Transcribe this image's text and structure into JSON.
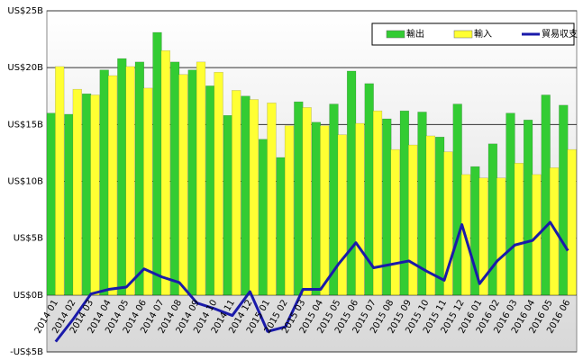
{
  "chart_data": {
    "type": "bar",
    "categories": [
      "2014 01",
      "2014 02",
      "2014 03",
      "2014 04",
      "2014 05",
      "2014 06",
      "2014 07",
      "2014 08",
      "2014 09",
      "2014 10",
      "2014 11",
      "2014 12",
      "2015 01",
      "2015 02",
      "2015 03",
      "2015 04",
      "2015 05",
      "2015 06",
      "2015 07",
      "2015 08",
      "2015 09",
      "2015 10",
      "2015 11",
      "2015 12",
      "2016 01",
      "2016 02",
      "2016 03",
      "2016 04",
      "2016 05",
      "2016 06"
    ],
    "series": [
      {
        "name": "輸出",
        "type": "bar",
        "color": "#33cc33",
        "values": [
          16.0,
          15.9,
          17.7,
          19.8,
          20.8,
          20.5,
          23.1,
          20.5,
          19.8,
          18.4,
          15.8,
          17.5,
          13.7,
          12.1,
          17.0,
          15.2,
          16.8,
          19.7,
          18.6,
          15.5,
          16.2,
          16.1,
          13.9,
          16.8,
          11.3,
          13.3,
          16.0,
          15.4,
          17.6,
          16.7
        ]
      },
      {
        "name": "輸入",
        "type": "bar",
        "color": "#ffff33",
        "values": [
          20.1,
          18.1,
          17.6,
          19.3,
          20.1,
          18.2,
          21.5,
          19.4,
          20.5,
          19.6,
          18.0,
          17.2,
          16.9,
          14.9,
          16.5,
          14.9,
          14.1,
          15.1,
          16.2,
          12.8,
          13.2,
          14.0,
          12.6,
          10.6,
          10.3,
          10.3,
          11.6,
          10.6,
          11.2,
          12.8
        ]
      },
      {
        "name": "貿易収支",
        "type": "line",
        "color": "#1a1aaa",
        "values": [
          -4.1,
          -2.1,
          0.1,
          0.5,
          0.7,
          2.3,
          1.6,
          1.1,
          -0.7,
          -1.2,
          -1.8,
          0.3,
          -3.2,
          -2.8,
          0.5,
          0.5,
          2.7,
          4.6,
          2.4,
          2.7,
          3.0,
          2.1,
          1.3,
          6.2,
          1.0,
          3.0,
          4.4,
          4.8,
          6.4,
          3.9
        ]
      }
    ],
    "ylim": [
      -5,
      25
    ],
    "yticks": [
      {
        "value": -5,
        "label": "-US$5B"
      },
      {
        "value": 0,
        "label": "US$0B"
      },
      {
        "value": 5,
        "label": "US$5B"
      },
      {
        "value": 10,
        "label": "US$10B"
      },
      {
        "value": 15,
        "label": "US$15B"
      },
      {
        "value": 20,
        "label": "US$20B"
      },
      {
        "value": 25,
        "label": "US$25B"
      }
    ],
    "grid": true,
    "legend": "top-right"
  }
}
